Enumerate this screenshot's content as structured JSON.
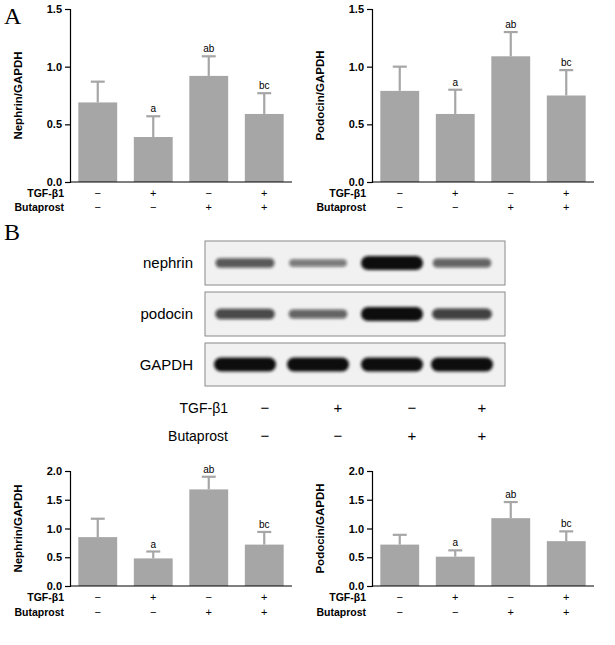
{
  "panel_labels": [
    "A",
    "B"
  ],
  "blot": {
    "bands": [
      "nephrin",
      "podocin",
      "GAPDH"
    ],
    "treatments": [
      {
        "name": "TGF-β1",
        "signs": [
          "−",
          "+",
          "−",
          "+"
        ]
      },
      {
        "name": "Butaprost",
        "signs": [
          "−",
          "−",
          "+",
          "+"
        ]
      }
    ]
  },
  "chart_data": [
    {
      "type": "bar",
      "y_label": "Nephrin/GAPDH",
      "categories": [
        null,
        null,
        null,
        null
      ],
      "values": [
        0.69,
        0.39,
        0.92,
        0.59
      ],
      "errors": [
        0.18,
        0.18,
        0.17,
        0.18
      ],
      "annotations": [
        null,
        "a",
        "ab",
        "bc"
      ],
      "color": "#a6a6a6",
      "ylim": [
        0,
        1.5
      ],
      "yticks": [
        {
          "value": 0,
          "label": "0.0"
        },
        {
          "value": 0.5,
          "label": "0.5"
        },
        {
          "value": 1,
          "label": "1.0"
        },
        {
          "value": 1.5,
          "label": "1.5"
        }
      ],
      "tick_labels": "y",
      "treatments": [
        {
          "name": "TGF-β1",
          "signs": [
            "−",
            "+",
            "−",
            "+"
          ]
        },
        {
          "name": "Butaprost",
          "signs": [
            "−",
            "−",
            "+",
            "+"
          ]
        }
      ]
    },
    {
      "type": "bar",
      "y_label": "Podocin/GAPDH",
      "categories": [
        null,
        null,
        null,
        null
      ],
      "values": [
        0.79,
        0.59,
        1.09,
        0.75
      ],
      "errors": [
        0.21,
        0.21,
        0.21,
        0.22
      ],
      "annotations": [
        null,
        "a",
        "ab",
        "bc"
      ],
      "color": "#a6a6a6",
      "ylim": [
        0,
        1.5
      ],
      "yticks": [
        {
          "value": 0,
          "label": "0.0"
        },
        {
          "value": 0.5,
          "label": "0.5"
        },
        {
          "value": 1,
          "label": "1.0"
        },
        {
          "value": 1.5,
          "label": "1.5"
        }
      ],
      "tick_labels": "y",
      "treatments": [
        {
          "name": "TGF-β1",
          "signs": [
            "−",
            "+",
            "−",
            "+"
          ]
        },
        {
          "name": "Butaprost",
          "signs": [
            "−",
            "−",
            "+",
            "+"
          ]
        }
      ]
    },
    {
      "type": "bar",
      "y_label": "Nephrin/GAPDH",
      "categories": [
        null,
        null,
        null,
        null
      ],
      "values": [
        0.85,
        0.48,
        1.68,
        0.72
      ],
      "errors": [
        0.32,
        0.12,
        0.22,
        0.22
      ],
      "annotations": [
        null,
        "a",
        "ab",
        "bc"
      ],
      "color": "#a6a6a6",
      "ylim": [
        0,
        2
      ],
      "yticks": [
        {
          "value": 0,
          "label": "0.0"
        },
        {
          "value": 0.5,
          "label": "0.5"
        },
        {
          "value": 1,
          "label": "1.0"
        },
        {
          "value": 1.5,
          "label": "1.5"
        },
        {
          "value": 2,
          "label": "2.0"
        }
      ],
      "tick_labels": "y",
      "treatments": [
        {
          "name": "TGF-β1",
          "signs": [
            "−",
            "+",
            "−",
            "+"
          ]
        },
        {
          "name": "Butaprost",
          "signs": [
            "−",
            "−",
            "+",
            "+"
          ]
        }
      ]
    },
    {
      "type": "bar",
      "y_label": "Podocin/GAPDH",
      "categories": [
        null,
        null,
        null,
        null
      ],
      "values": [
        0.72,
        0.51,
        1.18,
        0.78
      ],
      "errors": [
        0.17,
        0.11,
        0.28,
        0.17
      ],
      "annotations": [
        null,
        "a",
        "ab",
        "bc"
      ],
      "color": "#a6a6a6",
      "ylim": [
        0,
        2
      ],
      "yticks": [
        {
          "value": 0,
          "label": "0.0"
        },
        {
          "value": 0.5,
          "label": "0.5"
        },
        {
          "value": 1,
          "label": "1.0"
        },
        {
          "value": 1.5,
          "label": "1.5"
        },
        {
          "value": 2,
          "label": "2.0"
        }
      ],
      "tick_labels": "y",
      "treatments": [
        {
          "name": "TGF-β1",
          "signs": [
            "−",
            "+",
            "−",
            "+"
          ]
        },
        {
          "name": "Butaprost",
          "signs": [
            "−",
            "−",
            "+",
            "+"
          ]
        }
      ]
    }
  ]
}
